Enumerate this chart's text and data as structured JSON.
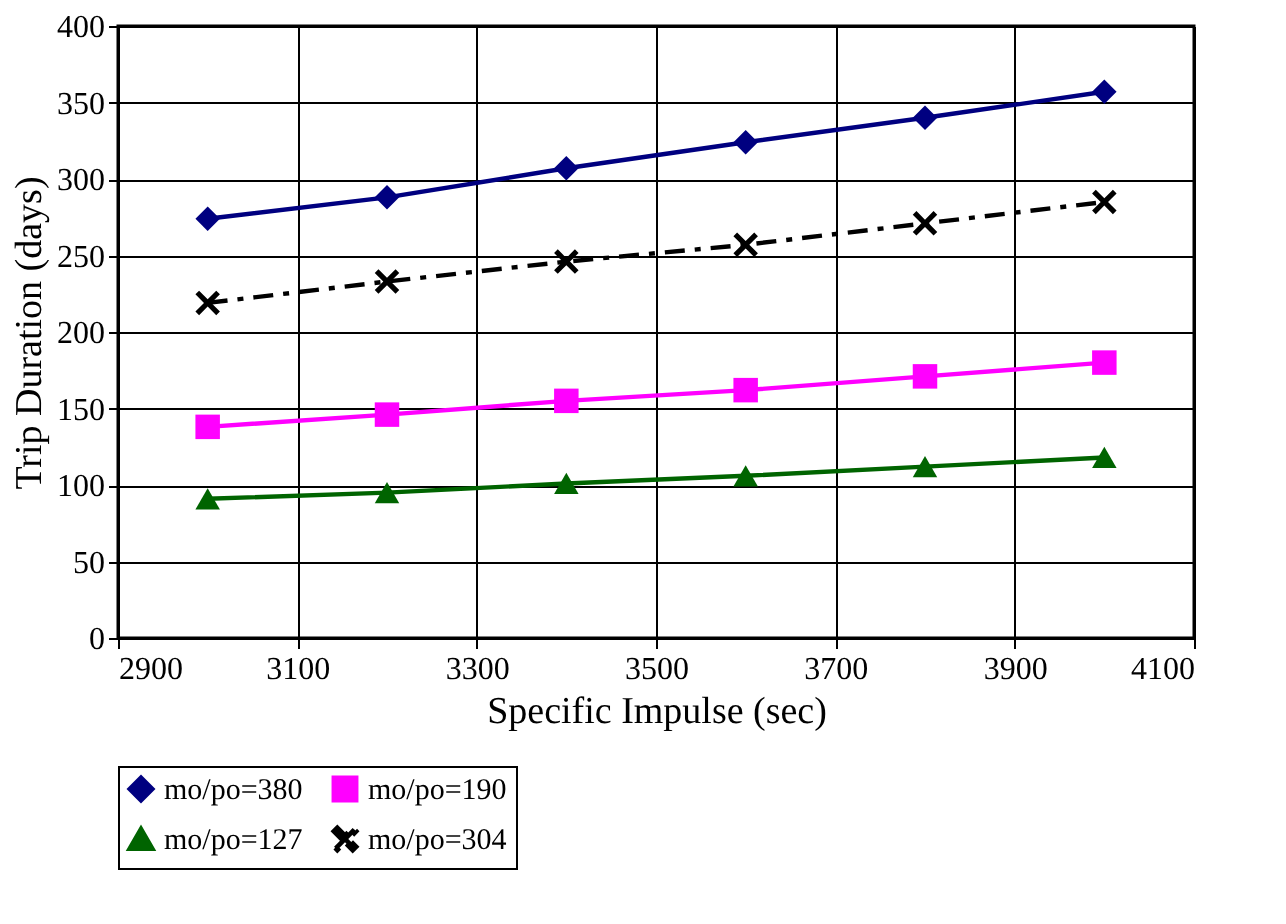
{
  "chart_data": {
    "type": "line",
    "xlabel": "Specific Impulse (sec)",
    "ylabel": "Trip Duration (days)",
    "x": [
      3000,
      3200,
      3400,
      3600,
      3800,
      4000
    ],
    "series": [
      {
        "name": "mo/po=380",
        "color": "#000080",
        "marker": "diamond",
        "line_style": "solid",
        "values": [
          274,
          288,
          307,
          324,
          340,
          357
        ]
      },
      {
        "name": "mo/po=190",
        "color": "#ff00ff",
        "marker": "square",
        "line_style": "solid",
        "values": [
          138,
          146,
          155,
          162,
          171,
          180
        ]
      },
      {
        "name": "mo/po=127",
        "color": "#006400",
        "marker": "triangle",
        "line_style": "solid",
        "values": [
          91,
          95,
          101,
          106,
          112,
          118
        ]
      },
      {
        "name": "mo/po=304",
        "color": "#000000",
        "marker": "cross",
        "line_style": "dashed",
        "values": [
          219,
          233,
          246,
          257,
          271,
          285
        ]
      }
    ],
    "xlim": [
      2900,
      4100
    ],
    "xticks": [
      2900,
      3100,
      3300,
      3500,
      3700,
      3900,
      4100
    ],
    "ylim": [
      0,
      400
    ],
    "yticks": [
      0,
      50,
      100,
      150,
      200,
      250,
      300,
      350,
      400
    ],
    "grid": true,
    "legend": "bottom"
  }
}
